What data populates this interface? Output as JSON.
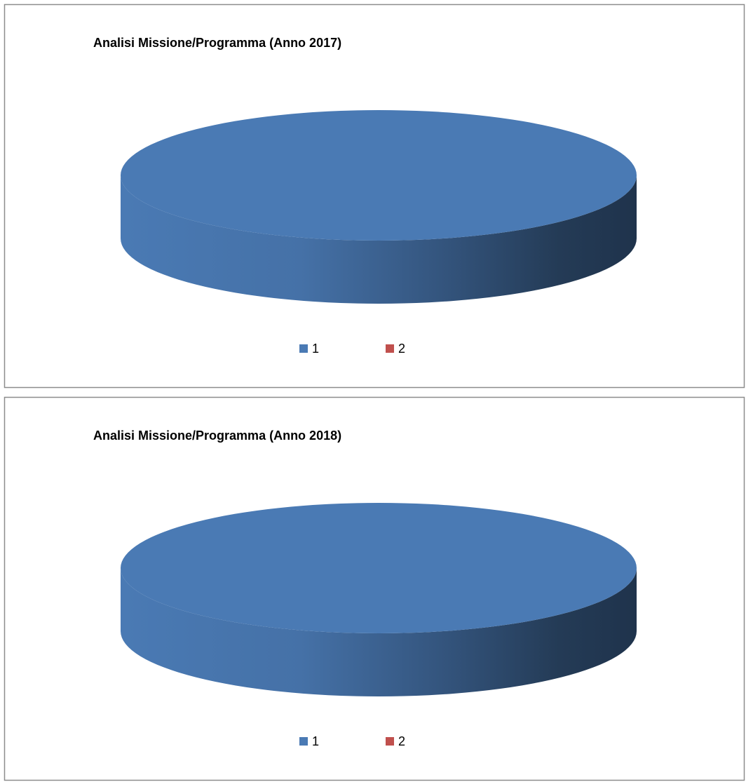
{
  "chart_data": [
    {
      "type": "pie",
      "title": "Analisi Missione/Programma (Anno 2017)",
      "categories": [
        "1",
        "2"
      ],
      "values": [
        100,
        0
      ],
      "colors": [
        "#4a7ab4",
        "#c0504d"
      ],
      "legend": "bottom"
    },
    {
      "type": "pie",
      "title": "Analisi Missione/Programma (Anno 2018)",
      "categories": [
        "1",
        "2"
      ],
      "values": [
        100,
        0
      ],
      "colors": [
        "#4a7ab4",
        "#c0504d"
      ],
      "legend": "bottom"
    }
  ]
}
